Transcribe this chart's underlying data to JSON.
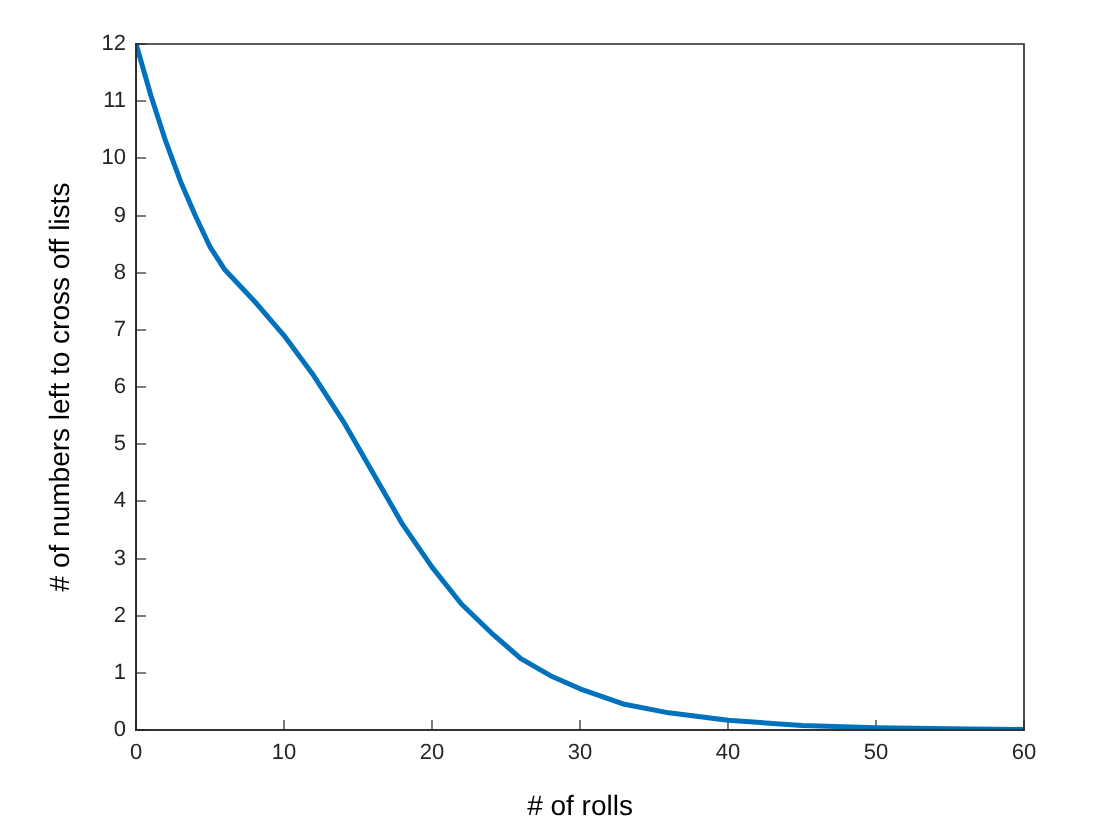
{
  "chart_data": {
    "type": "line",
    "xlabel": "# of rolls",
    "ylabel": "# of numbers left to cross off lists",
    "x": [
      0,
      1,
      2,
      3,
      4,
      5,
      6,
      8,
      10,
      12,
      14,
      16,
      18,
      20,
      22,
      24,
      26,
      28,
      30,
      33,
      36,
      40,
      45,
      50,
      55,
      60
    ],
    "series": [
      {
        "color": "#0072bd",
        "values": [
          12,
          11.1,
          10.3,
          9.6,
          9.0,
          8.45,
          8.05,
          7.5,
          6.9,
          6.2,
          5.4,
          4.5,
          3.6,
          2.85,
          2.2,
          1.7,
          1.25,
          0.95,
          0.72,
          0.45,
          0.3,
          0.17,
          0.08,
          0.04,
          0.02,
          0.01
        ]
      }
    ],
    "xlim": [
      0,
      60
    ],
    "xticks": [
      0,
      10,
      20,
      30,
      40,
      50,
      60
    ],
    "ylim": [
      0,
      12
    ],
    "yticks": [
      0,
      1,
      2,
      3,
      4,
      5,
      6,
      7,
      8,
      9,
      10,
      11,
      12
    ],
    "grid": false,
    "legend": false,
    "marker": "none",
    "line_style": "solid"
  }
}
